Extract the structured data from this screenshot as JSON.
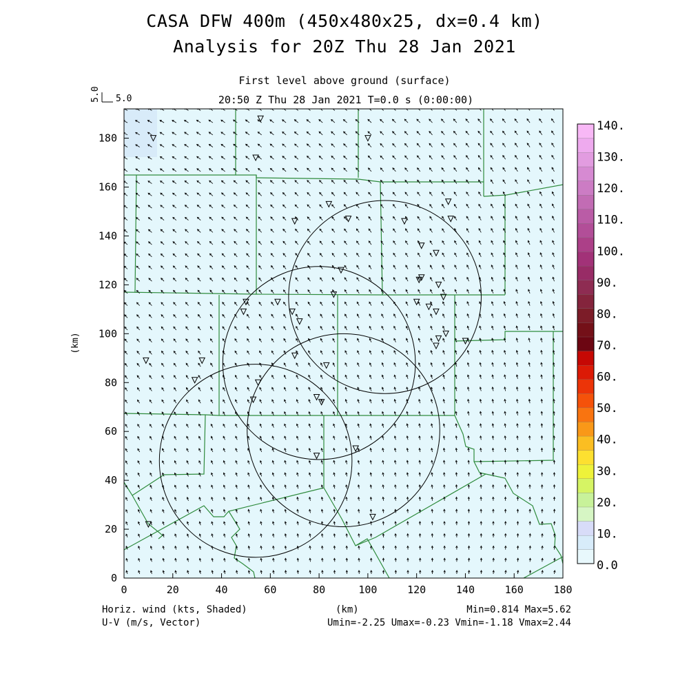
{
  "header": {
    "title_line1": "CASA DFW 400m (450x480x25, dx=0.4 km)",
    "title_line2": "Analysis for 20Z Thu 28 Jan 2021",
    "level_label": "First level above ground (surface)",
    "time_label": "20:50 Z Thu 28 Jan 2021   T=0.0 s (0:00:00)"
  },
  "reference_vector": {
    "vertical_label": "5.0",
    "horizontal_label": "5.0"
  },
  "axes": {
    "x_label": "(km)",
    "y_label": "(km)",
    "x_range": [
      0,
      180
    ],
    "y_range": [
      0,
      192
    ],
    "x_ticks": [
      "0",
      "20",
      "40",
      "60",
      "80",
      "100",
      "120",
      "140",
      "160",
      "180"
    ],
    "y_ticks": [
      "0",
      "20",
      "40",
      "60",
      "80",
      "100",
      "120",
      "140",
      "160",
      "180"
    ]
  },
  "colorbar": {
    "labels": [
      "140.",
      "130.",
      "120.",
      "110.",
      "100.",
      "90.",
      "80.",
      "70.",
      "60.",
      "50.",
      "40.",
      "30.",
      "20.",
      "10.",
      "0.0"
    ],
    "colors_bottom_to_top": [
      "#e8f8fc",
      "#d8ecfa",
      "#d8dcf8",
      "#d6f6c4",
      "#c8f29a",
      "#d6f464",
      "#eef23a",
      "#fde030",
      "#fbbe22",
      "#f99818",
      "#f97410",
      "#f5520a",
      "#ec3408",
      "#dc1a06",
      "#c60804",
      "#6c0612",
      "#741018",
      "#7c1c28",
      "#84243c",
      "#8e2c52",
      "#982c66",
      "#a23278",
      "#ac4088",
      "#b24e98",
      "#ba5ca6",
      "#c26cb4",
      "#cc7cc4",
      "#d68ad2",
      "#e29ce0",
      "#eeaaee",
      "#f8b8f6"
    ]
  },
  "footer": {
    "left_line1": "Horiz. wind (kts, Shaded)",
    "left_line2": "U-V (m/s, Vector)",
    "center": "(km)",
    "right_line1": "Min=0.814 Max=5.62",
    "right_line2": "Umin=-2.25 Umax=-0.23 Vmin=-1.18 Vmax=2.44"
  },
  "map": {
    "field_color": "#e4f7fc",
    "corner_color": "#d6e9f8",
    "boundary_color": "#2e8b3c",
    "radar_circles_km": [
      {
        "cx": 107,
        "cy": 115,
        "r": 39.5
      },
      {
        "cx": 80,
        "cy": 88,
        "r": 39.5
      },
      {
        "cx": 90,
        "cy": 60.5,
        "r": 39.5
      },
      {
        "cx": 54,
        "cy": 48,
        "r": 39.5
      }
    ],
    "station_markers_km": [
      [
        56,
        188
      ],
      [
        12,
        180
      ],
      [
        54,
        172
      ],
      [
        100,
        180
      ],
      [
        84,
        153
      ],
      [
        70,
        146
      ],
      [
        92,
        147
      ],
      [
        115,
        146
      ],
      [
        133,
        154
      ],
      [
        134,
        147
      ],
      [
        122,
        136
      ],
      [
        128,
        133
      ],
      [
        89,
        126
      ],
      [
        121,
        122
      ],
      [
        122,
        123
      ],
      [
        129,
        120
      ],
      [
        125,
        111
      ],
      [
        131,
        115
      ],
      [
        120,
        113
      ],
      [
        128,
        109
      ],
      [
        50,
        113
      ],
      [
        49,
        109
      ],
      [
        63,
        113
      ],
      [
        69,
        109
      ],
      [
        86,
        116
      ],
      [
        72,
        105
      ],
      [
        129,
        98
      ],
      [
        128,
        95
      ],
      [
        132,
        100
      ],
      [
        140,
        97
      ],
      [
        70,
        91
      ],
      [
        83,
        87
      ],
      [
        9,
        89
      ],
      [
        32,
        89
      ],
      [
        29,
        81
      ],
      [
        55,
        80
      ],
      [
        53,
        73
      ],
      [
        79,
        74
      ],
      [
        81,
        72
      ],
      [
        95,
        53
      ],
      [
        79,
        50
      ],
      [
        10,
        22
      ],
      [
        102,
        25
      ]
    ]
  }
}
